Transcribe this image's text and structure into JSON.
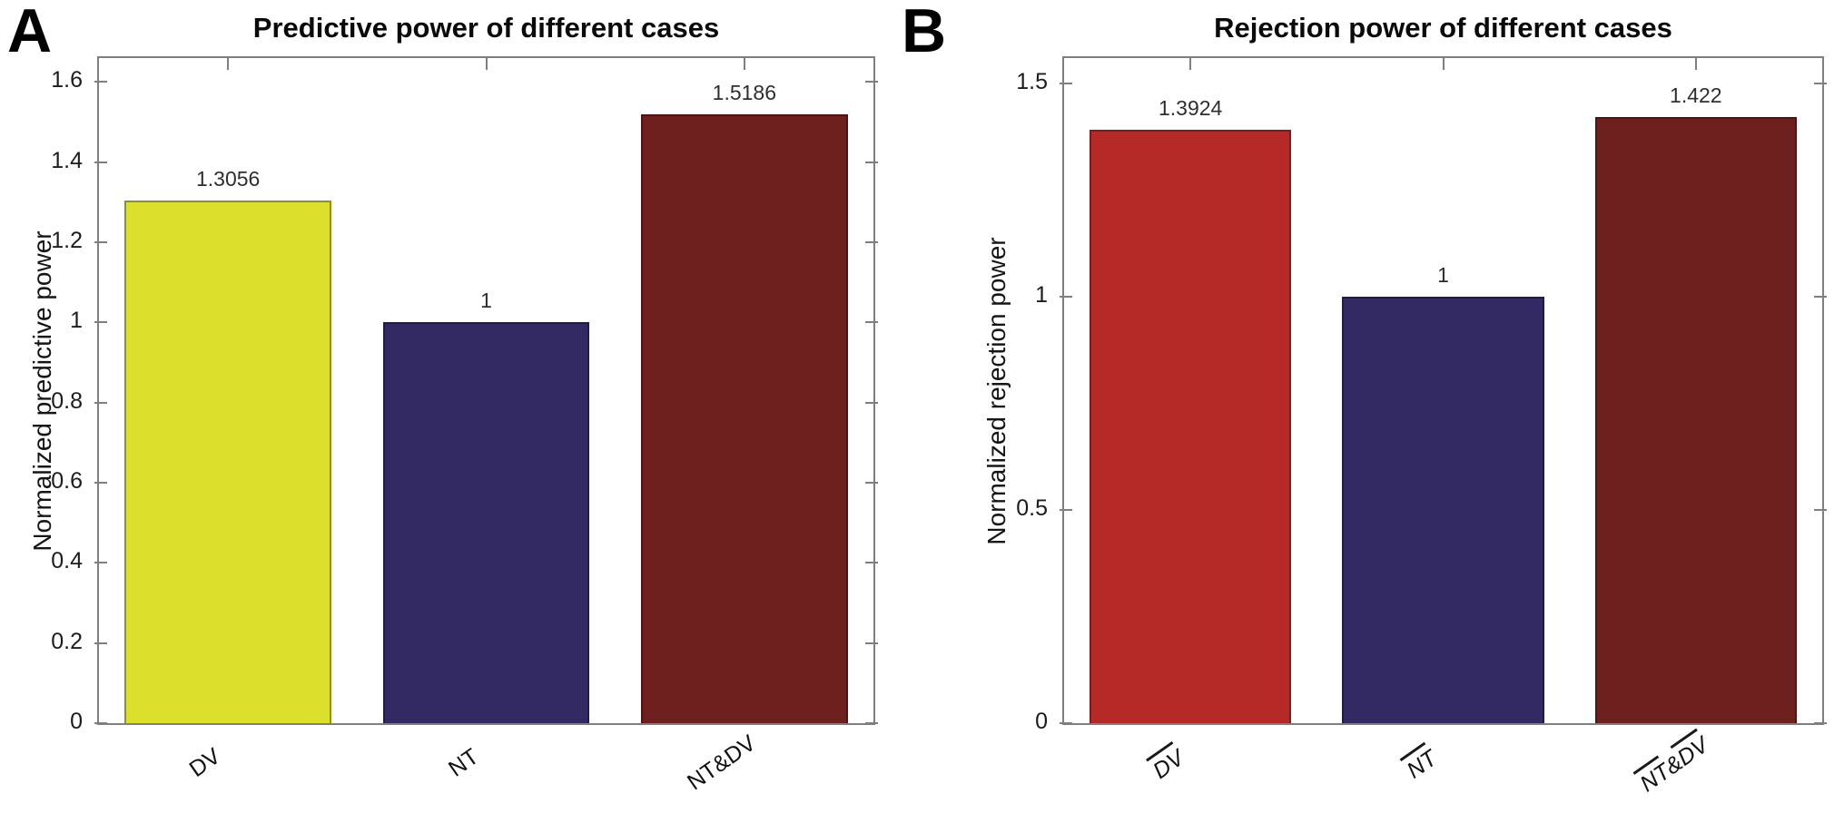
{
  "figure": {
    "background": "#ffffff",
    "spine_color": "#7f7f7f",
    "panel_count": 2
  },
  "chart_data": [
    {
      "type": "bar",
      "panel_letter": "A",
      "title": "Predictive power of different cases",
      "ylabel": "Normalized predictive power",
      "xlabel": "",
      "categories": [
        "DV",
        "NT",
        "NT&DV"
      ],
      "values": [
        1.3056,
        1,
        1.5186
      ],
      "value_labels": [
        "1.3056",
        "1",
        "1.5186"
      ],
      "bar_colors": [
        "#dcdf2b",
        "#342a63",
        "#6e201f"
      ],
      "bar_edge_colors": [
        "#8f921c",
        "#221a47",
        "#4c1514"
      ],
      "ylim": [
        0,
        1.66
      ],
      "yticks": [
        0,
        0.2,
        0.4,
        0.6,
        0.8,
        1,
        1.2,
        1.4,
        1.6
      ],
      "ytick_labels": [
        "0",
        "0.2",
        "0.4",
        "0.6",
        "0.8",
        "1",
        "1.2",
        "1.4",
        "1.6"
      ],
      "xticks": [
        {
          "italic": false,
          "segments": [
            {
              "text": "DV",
              "overline": false
            }
          ]
        },
        {
          "italic": false,
          "segments": [
            {
              "text": "NT",
              "overline": false
            }
          ]
        },
        {
          "italic": false,
          "segments": [
            {
              "text": "NT&DV",
              "overline": false
            }
          ]
        }
      ],
      "xtick_rotation_deg": -35,
      "bar_width_fraction": 0.8,
      "grid": false,
      "legend": "none"
    },
    {
      "type": "bar",
      "panel_letter": "B",
      "title": "Rejection power of different cases",
      "ylabel": "Normalized rejection power",
      "xlabel": "",
      "categories": [
        "DV",
        "NT",
        "NT & DV"
      ],
      "values": [
        1.3924,
        1,
        1.422
      ],
      "value_labels": [
        "1.3924",
        "1",
        "1.422"
      ],
      "bar_colors": [
        "#b52a27",
        "#342a63",
        "#6e201f"
      ],
      "bar_edge_colors": [
        "#7e1d1b",
        "#221a47",
        "#4c1514"
      ],
      "ylim": [
        0,
        1.56
      ],
      "yticks": [
        0,
        0.5,
        1,
        1.5
      ],
      "ytick_labels": [
        "0",
        "0.5",
        "1",
        "1.5"
      ],
      "xticks": [
        {
          "italic": true,
          "segments": [
            {
              "text": "DV",
              "overline": true
            }
          ]
        },
        {
          "italic": true,
          "segments": [
            {
              "text": "NT",
              "overline": true
            }
          ]
        },
        {
          "italic": true,
          "segments": [
            {
              "text": "NT",
              "overline": true
            },
            {
              "text": " & ",
              "overline": false
            },
            {
              "text": "DV",
              "overline": true
            }
          ]
        }
      ],
      "xtick_rotation_deg": -35,
      "bar_width_fraction": 0.8,
      "grid": false,
      "legend": "none"
    }
  ]
}
